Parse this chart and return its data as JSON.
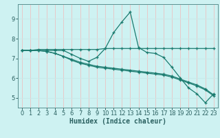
{
  "xlabel": "Humidex (Indice chaleur)",
  "bg_color": "#cef2f2",
  "line_color": "#1a7a6e",
  "grid_h_color": "#c8e8e8",
  "grid_v_color": "#e8c8c8",
  "tick_color": "#2a6060",
  "xlim": [
    -0.5,
    23.5
  ],
  "ylim": [
    4.5,
    9.75
  ],
  "yticks": [
    5,
    6,
    7,
    8,
    9
  ],
  "xticks": [
    0,
    1,
    2,
    3,
    4,
    5,
    6,
    7,
    8,
    9,
    10,
    11,
    12,
    13,
    14,
    15,
    16,
    17,
    18,
    19,
    20,
    21,
    22,
    23
  ],
  "series": [
    {
      "x": [
        0,
        1,
        2,
        3,
        4,
        5,
        6,
        7,
        8,
        9,
        10,
        11,
        12,
        13,
        14,
        15,
        16,
        17,
        18,
        19,
        20,
        21,
        22,
        23
      ],
      "y": [
        7.4,
        7.4,
        7.4,
        7.4,
        7.4,
        7.4,
        7.2,
        7.0,
        6.85,
        7.05,
        7.5,
        8.3,
        8.85,
        9.35,
        7.55,
        7.3,
        7.25,
        7.05,
        6.55,
        6.0,
        5.5,
        5.2,
        4.75,
        5.2
      ]
    },
    {
      "x": [
        0,
        1,
        2,
        3,
        4,
        5,
        6,
        7,
        8,
        9,
        10,
        11,
        12,
        13,
        14,
        15,
        16,
        17,
        18,
        19,
        20,
        21,
        22,
        23
      ],
      "y": [
        7.4,
        7.4,
        7.4,
        7.35,
        7.25,
        7.1,
        6.95,
        6.8,
        6.7,
        6.6,
        6.55,
        6.5,
        6.45,
        6.4,
        6.35,
        6.3,
        6.25,
        6.2,
        6.1,
        5.95,
        5.8,
        5.65,
        5.45,
        5.15
      ]
    },
    {
      "x": [
        0,
        1,
        2,
        3,
        4,
        5,
        6,
        7,
        8,
        9,
        10,
        11,
        12,
        13,
        14,
        15,
        16,
        17,
        18,
        19,
        20,
        21,
        22,
        23
      ],
      "y": [
        7.4,
        7.4,
        7.4,
        7.35,
        7.25,
        7.1,
        6.9,
        6.75,
        6.65,
        6.55,
        6.5,
        6.45,
        6.4,
        6.35,
        6.3,
        6.25,
        6.2,
        6.15,
        6.05,
        5.9,
        5.75,
        5.6,
        5.4,
        5.1
      ]
    },
    {
      "x": [
        0,
        1,
        2,
        3,
        4,
        5,
        6,
        7,
        8,
        9,
        10,
        11,
        12,
        13,
        14,
        15,
        16,
        17,
        18,
        19,
        20,
        21,
        22,
        23
      ],
      "y": [
        7.4,
        7.4,
        7.45,
        7.45,
        7.45,
        7.45,
        7.45,
        7.45,
        7.45,
        7.45,
        7.5,
        7.5,
        7.5,
        7.5,
        7.5,
        7.5,
        7.5,
        7.5,
        7.5,
        7.5,
        7.5,
        7.5,
        7.5,
        7.5
      ]
    }
  ]
}
